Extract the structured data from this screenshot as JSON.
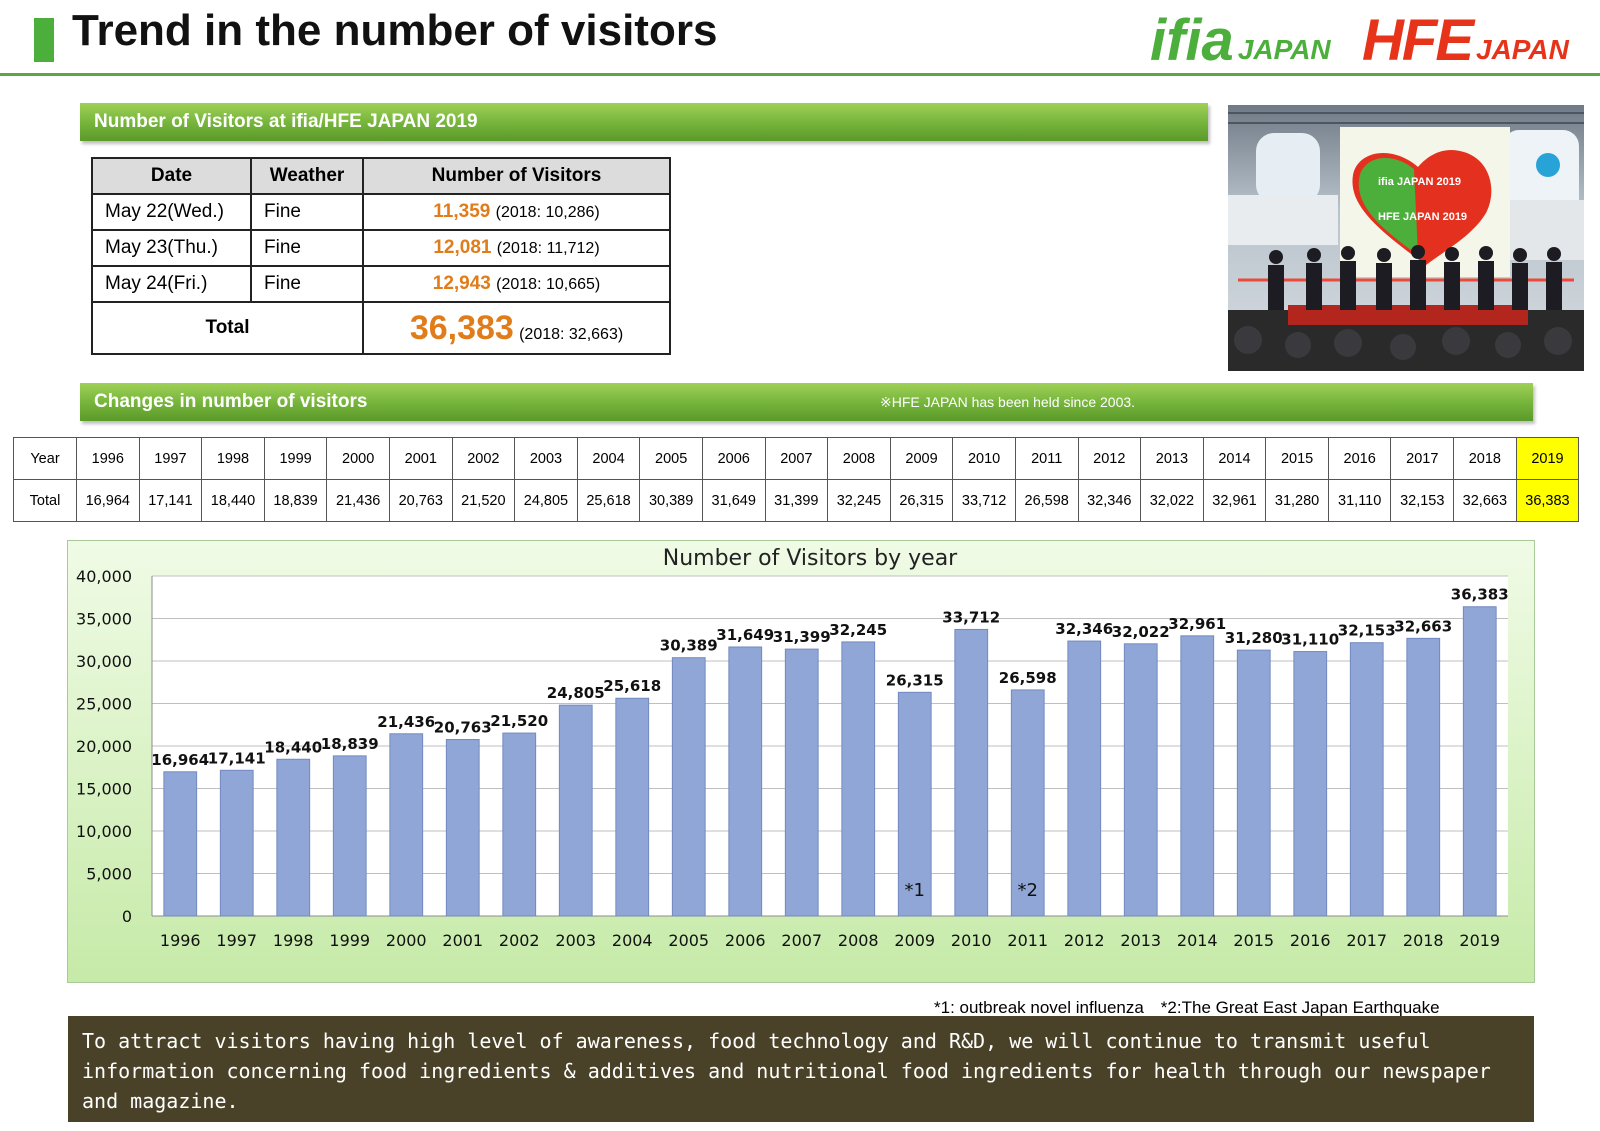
{
  "header": {
    "title": "Trend in the number of visitors",
    "logo_ifia": "ifia",
    "logo_ifia_sub": "JAPAN",
    "logo_hfe": "HFE",
    "logo_hfe_sub": "JAPAN"
  },
  "visitors_2019": {
    "heading": "Number of Visitors at ifia/HFE JAPAN 2019",
    "columns": [
      "Date",
      "Weather",
      "Number of Visitors"
    ],
    "rows": [
      {
        "date": "May 22(Wed.)",
        "weather": "Fine",
        "visitors": "11,359",
        "prev": "(2018: 10,286)"
      },
      {
        "date": "May 23(Thu.)",
        "weather": "Fine",
        "visitors": "12,081",
        "prev": "(2018: 11,712)"
      },
      {
        "date": "May 24(Fri.)",
        "weather": "Fine",
        "visitors": "12,943",
        "prev": "(2018: 10,665)"
      }
    ],
    "total_label": "Total",
    "total_value": "36,383",
    "total_prev": "(2018: 32,663)"
  },
  "changes": {
    "heading": "Changes in number of visitors",
    "note": "※HFE JAPAN has been held since 2003.",
    "row_label_year": "Year",
    "row_label_total": "Total",
    "highlight_color": "#ffff00"
  },
  "photo_sign": {
    "line1": "ifia JAPAN 2019",
    "line2": "HFE JAPAN 2019"
  },
  "chart_data": {
    "type": "bar",
    "title": "Number of Visitors by year",
    "categories": [
      "1996",
      "1997",
      "1998",
      "1999",
      "2000",
      "2001",
      "2002",
      "2003",
      "2004",
      "2005",
      "2006",
      "2007",
      "2008",
      "2009",
      "2010",
      "2011",
      "2012",
      "2013",
      "2014",
      "2015",
      "2016",
      "2017",
      "2018",
      "2019"
    ],
    "values": [
      16964,
      17141,
      18440,
      18839,
      21436,
      20763,
      21520,
      24805,
      25618,
      30389,
      31649,
      31399,
      32245,
      26315,
      33712,
      26598,
      32346,
      32022,
      32961,
      31280,
      31110,
      32153,
      32663,
      36383
    ],
    "value_labels": [
      "16,964",
      "17,141",
      "18,440",
      "18,839",
      "21,436",
      "20,763",
      "21,520",
      "24,805",
      "25,618",
      "30,389",
      "31,649",
      "31,399",
      "32,245",
      "26,315",
      "33,712",
      "26,598",
      "32,346",
      "32,022",
      "32,961",
      "31,280",
      "31,110",
      "32,153",
      "32,663",
      "36,383"
    ],
    "ylim": [
      0,
      40000
    ],
    "yticks": [
      "0",
      "5,000",
      "10,000",
      "15,000",
      "20,000",
      "25,000",
      "30,000",
      "35,000",
      "40,000"
    ],
    "bar_color": "#8fa6d6",
    "grid": true,
    "annotations": [
      {
        "category": "2009",
        "text": "*1"
      },
      {
        "category": "2011",
        "text": "*2"
      }
    ]
  },
  "footnote": "*1: outbreak novel influenza　*2:The Great East Japan Earthquake",
  "message": "To attract visitors having high level of awareness, food technology and R&D, we will continue to transmit useful information concerning food ingredients & additives and nutritional food ingredients for health through our newspaper and magazine."
}
